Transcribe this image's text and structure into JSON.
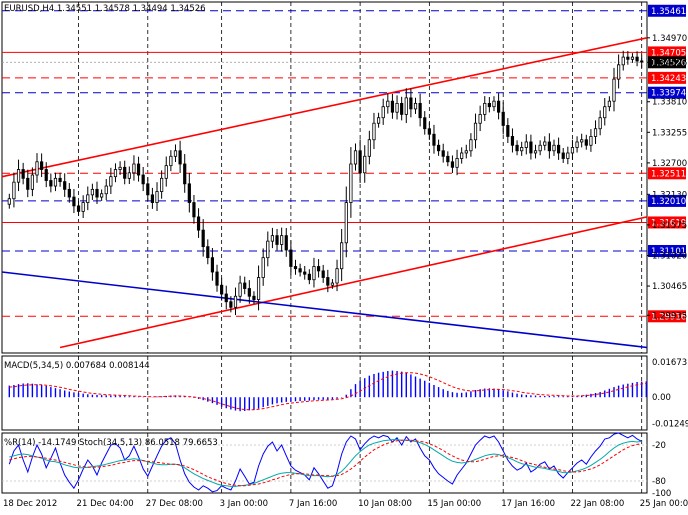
{
  "chart_data": [
    {
      "type": "candlestick",
      "title": "EURUSD,H4  1.34551 1.34578 1.34494 1.34526",
      "x_labels": [
        "18 Dec 2012",
        "21 Dec 04:00",
        "27 Dec 08:00",
        "3 Jan 00:00",
        "7 Jan 16:00",
        "10 Jan 08:00",
        "15 Jan 00:00",
        "17 Jan 16:00",
        "22 Jan 08:00",
        "25 Jan 00:00"
      ],
      "y_ticks": [
        "1.34970",
        "1.34526",
        "1.33810",
        "1.33255",
        "1.32700",
        "1.32130",
        "1.31575",
        "1.31020",
        "1.30465",
        "1.29935"
      ],
      "ylim": [
        1.2925,
        1.3562
      ],
      "current_price": "1.34526",
      "levels": [
        {
          "label": "1.35461",
          "value": 1.35461,
          "style": "dash",
          "color": "#0000cc"
        },
        {
          "label": "1.34705",
          "value": 1.34705,
          "style": "solid",
          "color": "#ff0000"
        },
        {
          "label": "1.34243",
          "value": 1.34243,
          "style": "dash",
          "color": "#ff0000"
        },
        {
          "label": "1.33974",
          "value": 1.33974,
          "style": "dash",
          "color": "#0000cc"
        },
        {
          "label": "1.32511",
          "value": 1.32511,
          "style": "dash",
          "color": "#ff0000"
        },
        {
          "label": "1.32010",
          "value": 1.3201,
          "style": "dash",
          "color": "#0000cc"
        },
        {
          "label": "1.31619",
          "value": 1.31619,
          "style": "solid",
          "color": "#ff0000"
        },
        {
          "label": "1.31101",
          "value": 1.31101,
          "style": "dash",
          "color": "#0000cc"
        },
        {
          "label": "1.29916",
          "value": 1.29916,
          "style": "dash",
          "color": "#ff0000"
        }
      ],
      "trend_lines": [
        {
          "name": "channel-upper",
          "color": "#ff0000",
          "from": [
            0,
            1.3245
          ],
          "to": [
            1,
            1.3497
          ]
        },
        {
          "name": "channel-lower",
          "color": "#ff0000",
          "from": [
            0.09,
            1.2935
          ],
          "to": [
            1,
            1.3172
          ]
        },
        {
          "name": "support-line",
          "color": "#0000cc",
          "from": [
            0,
            1.3072
          ],
          "to": [
            1,
            1.2935
          ]
        }
      ],
      "close": [
        1.3205,
        1.3235,
        1.3258,
        1.3242,
        1.3222,
        1.3248,
        1.3272,
        1.3258,
        1.3238,
        1.3228,
        1.3242,
        1.3236,
        1.3222,
        1.3208,
        1.3192,
        1.3182,
        1.3198,
        1.3212,
        1.3222,
        1.3208,
        1.3214,
        1.3228,
        1.3245,
        1.3258,
        1.3262,
        1.3242,
        1.3252,
        1.3268,
        1.3248,
        1.3232,
        1.3212,
        1.3198,
        1.3218,
        1.3242,
        1.3265,
        1.3282,
        1.3292,
        1.3268,
        1.3232,
        1.3198,
        1.3172,
        1.3148,
        1.3118,
        1.3098,
        1.3072,
        1.3048,
        1.3032,
        1.3018,
        1.3008,
        1.3028,
        1.3052,
        1.3042,
        1.3028,
        1.3022,
        1.3062,
        1.3098,
        1.3128,
        1.3138,
        1.3122,
        1.3138,
        1.3112,
        1.3082,
        1.3078,
        1.3072,
        1.3068,
        1.3058,
        1.3082,
        1.3074,
        1.3062,
        1.3048,
        1.3052,
        1.3078,
        1.3125,
        1.3198,
        1.3268,
        1.3292,
        1.3252,
        1.3282,
        1.3312,
        1.3342,
        1.3352,
        1.3372,
        1.3382,
        1.3362,
        1.3378,
        1.3358,
        1.3388,
        1.3368,
        1.3378,
        1.3352,
        1.3332,
        1.3322,
        1.3302,
        1.3292,
        1.3282,
        1.3272,
        1.3262,
        1.3278,
        1.3288,
        1.3292,
        1.3312,
        1.3342,
        1.3358,
        1.3378,
        1.3372,
        1.3382,
        1.3362,
        1.3338,
        1.3318,
        1.3302,
        1.3292,
        1.3298,
        1.3308,
        1.3288,
        1.3292,
        1.3302,
        1.3308,
        1.3292,
        1.3302,
        1.3288,
        1.3278,
        1.3288,
        1.3298,
        1.3308,
        1.3312,
        1.3302,
        1.3318,
        1.3332,
        1.3352,
        1.3372,
        1.3382,
        1.3422,
        1.3448,
        1.3462,
        1.3458,
        1.3462,
        1.3455,
        1.3453
      ]
    },
    {
      "type": "histogram",
      "title": "MACD(5,34,5) 0.007684 0.008144",
      "y_ticks": [
        "0.016731",
        "0.00",
        "-0.01249"
      ],
      "ylim": [
        -0.0155,
        0.0195
      ],
      "values": [
        0.0055,
        0.0058,
        0.0062,
        0.0065,
        0.0066,
        0.0064,
        0.0061,
        0.0058,
        0.0054,
        0.0048,
        0.0043,
        0.0038,
        0.0032,
        0.0027,
        0.0023,
        0.002,
        0.0017,
        0.0014,
        0.0012,
        0.0011,
        0.001,
        0.0009,
        0.0008,
        0.0008,
        0.0007,
        0.0005,
        0.0004,
        0.0004,
        0.0003,
        0.0002,
        0.0002,
        0.0001,
        0.0003,
        0.0004,
        0.0006,
        0.0008,
        0.0009,
        0.0007,
        0.0004,
        0.0001,
        -0.0003,
        -0.0008,
        -0.0014,
        -0.0021,
        -0.0028,
        -0.0036,
        -0.0045,
        -0.0052,
        -0.0058,
        -0.0063,
        -0.0066,
        -0.0065,
        -0.0062,
        -0.0059,
        -0.0054,
        -0.0047,
        -0.0041,
        -0.0034,
        -0.0029,
        -0.0025,
        -0.0022,
        -0.0021,
        -0.0019,
        -0.0018,
        -0.0017,
        -0.0016,
        -0.0014,
        -0.0012,
        -0.0012,
        -0.0011,
        -0.001,
        -0.0007,
        -0.0002,
        0.0012,
        0.0038,
        0.0062,
        0.0078,
        0.009,
        0.0102,
        0.011,
        0.0116,
        0.012,
        0.0124,
        0.0126,
        0.0124,
        0.0121,
        0.0116,
        0.0108,
        0.0098,
        0.0088,
        0.0078,
        0.0068,
        0.0058,
        0.0048,
        0.0038,
        0.003,
        0.0024,
        0.0021,
        0.0021,
        0.0023,
        0.0028,
        0.0034,
        0.0038,
        0.0041,
        0.0042,
        0.0041,
        0.0038,
        0.0033,
        0.0028,
        0.0022,
        0.0017,
        0.0013,
        0.0011,
        0.0009,
        0.0008,
        0.0007,
        0.0006,
        0.0006,
        0.0005,
        0.0005,
        0.0004,
        0.0004,
        0.0005,
        0.0006,
        0.0008,
        0.0012,
        0.0016,
        0.002,
        0.0025,
        0.0032,
        0.004,
        0.0048,
        0.0055,
        0.006,
        0.0064,
        0.0068,
        0.0072,
        0.0074,
        0.0075
      ],
      "signal": [
        0.0048,
        0.005,
        0.0053,
        0.0056,
        0.0058,
        0.0059,
        0.0059,
        0.0059,
        0.0057,
        0.0054,
        0.0051,
        0.0047,
        0.0042,
        0.0037,
        0.0033,
        0.0029,
        0.0025,
        0.0021,
        0.0018,
        0.0016,
        0.0014,
        0.0012,
        0.0011,
        0.001,
        0.0009,
        0.0008,
        0.0007,
        0.0006,
        0.0005,
        0.0004,
        0.0003,
        0.0002,
        0.0002,
        0.0003,
        0.0004,
        0.0005,
        0.0006,
        0.0006,
        0.0005,
        0.0003,
        0.0001,
        -0.0002,
        -0.0006,
        -0.0011,
        -0.0017,
        -0.0024,
        -0.0031,
        -0.0038,
        -0.0045,
        -0.0051,
        -0.0055,
        -0.0058,
        -0.0059,
        -0.0059,
        -0.0057,
        -0.0054,
        -0.005,
        -0.0045,
        -0.004,
        -0.0035,
        -0.0031,
        -0.0028,
        -0.0025,
        -0.0023,
        -0.0021,
        -0.0019,
        -0.0017,
        -0.0016,
        -0.0014,
        -0.0013,
        -0.0012,
        -0.001,
        -0.0007,
        -0.0002,
        0.0006,
        0.0017,
        0.0029,
        0.0042,
        0.0055,
        0.0067,
        0.0078,
        0.0088,
        0.0097,
        0.0104,
        0.011,
        0.0114,
        0.0116,
        0.0116,
        0.0114,
        0.011,
        0.0104,
        0.0097,
        0.0088,
        0.0079,
        0.0069,
        0.0059,
        0.005,
        0.0042,
        0.0036,
        0.0032,
        0.003,
        0.003,
        0.0032,
        0.0034,
        0.0036,
        0.0037,
        0.0037,
        0.0036,
        0.0034,
        0.0031,
        0.0028,
        0.0024,
        0.002,
        0.0017,
        0.0015,
        0.0013,
        0.0011,
        0.001,
        0.0009,
        0.0008,
        0.0007,
        0.0006,
        0.0006,
        0.0006,
        0.0007,
        0.0008,
        0.001,
        0.0013,
        0.0016,
        0.002,
        0.0025,
        0.0031,
        0.0037,
        0.0043,
        0.0049,
        0.0054,
        0.0059,
        0.0063,
        0.0066
      ]
    },
    {
      "type": "line",
      "title": "%R(14) -14.1749  Stoch(34,5,13) 86.0518 79.6653",
      "y_ticks": [
        "-20",
        "-80",
        "-100"
      ],
      "ylim": [
        -100,
        0
      ],
      "series": [
        {
          "name": "%R(14)",
          "color": "#0000ff",
          "values": [
            -52,
            -30,
            -20,
            -45,
            -65,
            -40,
            -20,
            -35,
            -58,
            -42,
            -25,
            -50,
            -70,
            -82,
            -92,
            -78,
            -60,
            -45,
            -55,
            -70,
            -50,
            -35,
            -20,
            -18,
            -25,
            -45,
            -38,
            -22,
            -40,
            -60,
            -72,
            -55,
            -38,
            -22,
            -12,
            -8,
            -18,
            -45,
            -68,
            -82,
            -90,
            -95,
            -88,
            -92,
            -98,
            -96,
            -88,
            -92,
            -95,
            -80,
            -60,
            -72,
            -85,
            -82,
            -55,
            -35,
            -22,
            -15,
            -30,
            -20,
            -38,
            -55,
            -62,
            -66,
            -70,
            -78,
            -58,
            -68,
            -80,
            -92,
            -88,
            -65,
            -35,
            -15,
            -5,
            -10,
            -28,
            -18,
            -10,
            -5,
            -8,
            -4,
            -6,
            -15,
            -8,
            -20,
            -6,
            -15,
            -10,
            -25,
            -38,
            -45,
            -58,
            -68,
            -74,
            -80,
            -85,
            -70,
            -60,
            -50,
            -35,
            -20,
            -12,
            -5,
            -8,
            -5,
            -15,
            -30,
            -45,
            -55,
            -62,
            -58,
            -50,
            -65,
            -60,
            -52,
            -48,
            -60,
            -55,
            -68,
            -75,
            -66,
            -58,
            -50,
            -45,
            -52,
            -40,
            -30,
            -22,
            -10,
            -8,
            -2,
            0,
            -4,
            -8,
            -4,
            -10,
            -14
          ]
        },
        {
          "name": "Stoch main",
          "color": "#00aaaa",
          "values": [
            -40,
            -38,
            -36,
            -35,
            -36,
            -38,
            -40,
            -42,
            -45,
            -47,
            -48,
            -50,
            -53,
            -55,
            -57,
            -58,
            -58,
            -57,
            -56,
            -55,
            -54,
            -52,
            -50,
            -48,
            -46,
            -45,
            -44,
            -43,
            -44,
            -46,
            -48,
            -50,
            -52,
            -53,
            -53,
            -52,
            -52,
            -54,
            -58,
            -63,
            -68,
            -72,
            -76,
            -79,
            -82,
            -85,
            -87,
            -88,
            -89,
            -89,
            -88,
            -87,
            -86,
            -84,
            -81,
            -78,
            -75,
            -72,
            -69,
            -67,
            -66,
            -66,
            -67,
            -68,
            -70,
            -71,
            -71,
            -71,
            -72,
            -73,
            -72,
            -69,
            -64,
            -56,
            -47,
            -38,
            -31,
            -25,
            -20,
            -17,
            -15,
            -13,
            -12,
            -11,
            -11,
            -12,
            -12,
            -13,
            -14,
            -16,
            -19,
            -23,
            -28,
            -33,
            -38,
            -43,
            -47,
            -49,
            -50,
            -49,
            -47,
            -44,
            -41,
            -38,
            -36,
            -35,
            -36,
            -38,
            -41,
            -44,
            -48,
            -51,
            -53,
            -55,
            -57,
            -58,
            -59,
            -61,
            -62,
            -64,
            -66,
            -66,
            -65,
            -63,
            -61,
            -58,
            -54,
            -49,
            -44,
            -38,
            -31,
            -25,
            -20,
            -17,
            -15,
            -14,
            -15,
            -14
          ]
        },
        {
          "name": "Stoch signal",
          "color": "#ff0000",
          "style": "dash",
          "values": [
            -45,
            -43,
            -41,
            -40,
            -39,
            -39,
            -40,
            -41,
            -42,
            -44,
            -45,
            -47,
            -49,
            -51,
            -53,
            -55,
            -56,
            -57,
            -57,
            -57,
            -56,
            -55,
            -54,
            -52,
            -50,
            -49,
            -47,
            -46,
            -46,
            -46,
            -47,
            -48,
            -49,
            -50,
            -51,
            -52,
            -52,
            -53,
            -55,
            -58,
            -61,
            -65,
            -69,
            -73,
            -76,
            -79,
            -82,
            -84,
            -86,
            -87,
            -88,
            -88,
            -87,
            -86,
            -85,
            -83,
            -81,
            -78,
            -76,
            -73,
            -71,
            -69,
            -68,
            -68,
            -68,
            -69,
            -70,
            -70,
            -71,
            -71,
            -72,
            -71,
            -69,
            -65,
            -60,
            -54,
            -47,
            -40,
            -34,
            -28,
            -24,
            -20,
            -17,
            -15,
            -13,
            -12,
            -12,
            -12,
            -13,
            -14,
            -15,
            -18,
            -21,
            -25,
            -29,
            -34,
            -38,
            -42,
            -45,
            -47,
            -48,
            -48,
            -46,
            -44,
            -41,
            -39,
            -38,
            -38,
            -39,
            -41,
            -43,
            -46,
            -49,
            -51,
            -53,
            -55,
            -57,
            -58,
            -60,
            -61,
            -63,
            -64,
            -65,
            -65,
            -64,
            -62,
            -60,
            -57,
            -53,
            -48,
            -43,
            -38,
            -33,
            -28,
            -24,
            -21,
            -19,
            -18
          ]
        }
      ]
    }
  ]
}
